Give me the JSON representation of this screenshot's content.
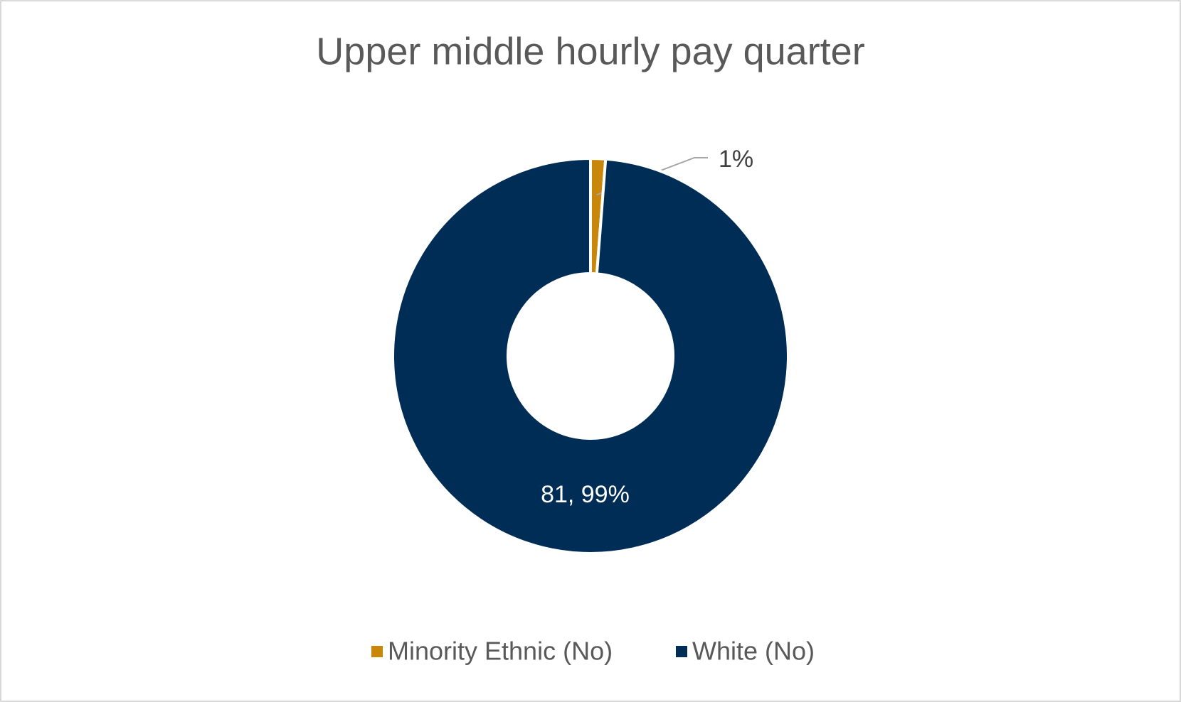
{
  "chart_data": {
    "type": "donut",
    "title": "Upper middle hourly pay quarter",
    "categories": [
      "Minority Ethnic (No)",
      "White (No)"
    ],
    "values": [
      1,
      81
    ],
    "value_labels": [
      "1%",
      "81, 99%"
    ],
    "colors": [
      "#c8860a",
      "#002d56"
    ],
    "legend": "bottom"
  }
}
